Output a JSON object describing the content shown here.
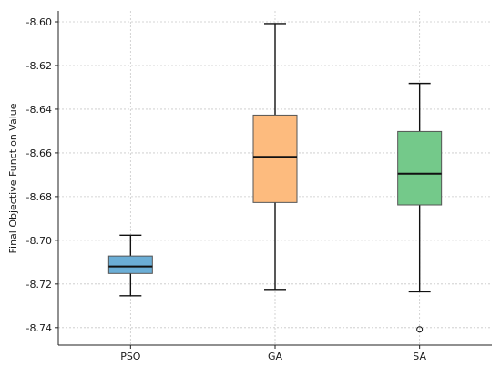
{
  "chart_data": {
    "type": "box",
    "title": "",
    "xlabel": "",
    "ylabel": "Final Objective Function Value",
    "ylim": [
      -8.748,
      -8.595
    ],
    "yticks": [
      -8.6,
      -8.62,
      -8.64,
      -8.66,
      -8.68,
      -8.7,
      -8.72,
      -8.74
    ],
    "ytick_labels": [
      "-8.60",
      "-8.62",
      "-8.64",
      "-8.66",
      "-8.68",
      "-8.70",
      "-8.72",
      "-8.74"
    ],
    "grid": true,
    "categories": [
      "PSO",
      "GA",
      "SA"
    ],
    "boxes": [
      {
        "label": "PSO",
        "color": "#6BAED6",
        "whisker_low": -8.7254,
        "q1": -8.7152,
        "median": -8.712,
        "q3": -8.7072,
        "whisker_high": -8.6977,
        "outliers": []
      },
      {
        "label": "GA",
        "color": "#FDBB7E",
        "whisker_low": -8.7225,
        "q1": -8.6827,
        "median": -8.6618,
        "q3": -8.6427,
        "whisker_high": -8.6008,
        "outliers": []
      },
      {
        "label": "SA",
        "color": "#74C98A",
        "whisker_low": -8.7236,
        "q1": -8.6838,
        "median": -8.6695,
        "q3": -8.6502,
        "whisker_high": -8.6282,
        "outliers": [
          -8.7408
        ]
      }
    ]
  }
}
